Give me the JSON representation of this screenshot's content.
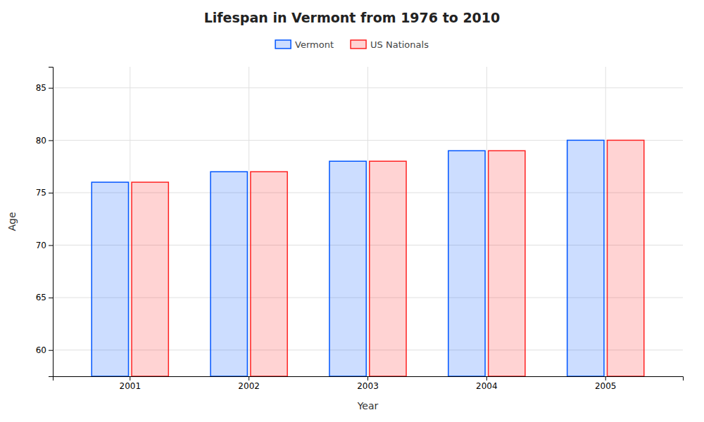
{
  "chart_data": {
    "type": "bar",
    "title": "Lifespan in Vermont from 1976 to 2010",
    "x_label": "Year",
    "y_label": "Age",
    "categories": [
      "2001",
      "2002",
      "2003",
      "2004",
      "2005"
    ],
    "series": [
      {
        "name": "Vermont",
        "color": "#0055ff",
        "values": [
          76,
          77,
          78,
          79,
          80
        ]
      },
      {
        "name": "US Nationals",
        "color": "#ff2222",
        "values": [
          76,
          77,
          78,
          79,
          80
        ]
      }
    ],
    "ylim": [
      57.5,
      87
    ],
    "yticks": [
      60,
      65,
      70,
      75,
      80,
      85
    ],
    "grid": true,
    "legend": "top"
  }
}
